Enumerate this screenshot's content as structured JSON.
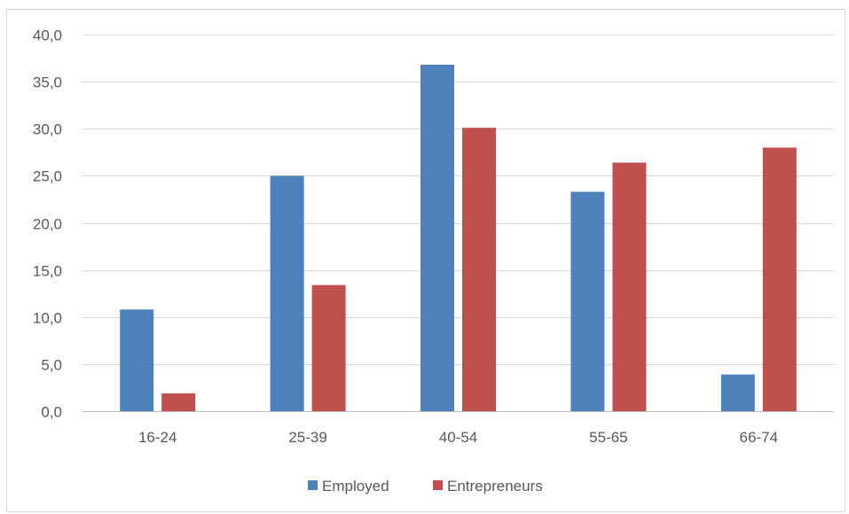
{
  "chart_data": {
    "type": "bar",
    "title": "",
    "xlabel": "",
    "ylabel": "",
    "categories": [
      "16-24",
      "25-39",
      "40-54",
      "55-65",
      "66-74"
    ],
    "series": [
      {
        "name": "Employed",
        "color": "#4F81BD",
        "values": [
          10.8,
          25.0,
          36.8,
          23.3,
          3.9
        ]
      },
      {
        "name": "Entrepreneurs",
        "color": "#C0504D",
        "values": [
          1.9,
          13.4,
          30.1,
          26.4,
          28.0
        ]
      }
    ],
    "ylim": [
      0,
      40
    ],
    "yticks": [
      0,
      5,
      10,
      15,
      20,
      25,
      30,
      35,
      40
    ],
    "ytick_labels": [
      "0,0",
      "5,0",
      "10,0",
      "15,0",
      "20,0",
      "25,0",
      "30,0",
      "35,0",
      "40,0"
    ],
    "grid": true,
    "legend": "bottom",
    "gridline_color": "#D9D9D9",
    "text_color": "#595959"
  }
}
